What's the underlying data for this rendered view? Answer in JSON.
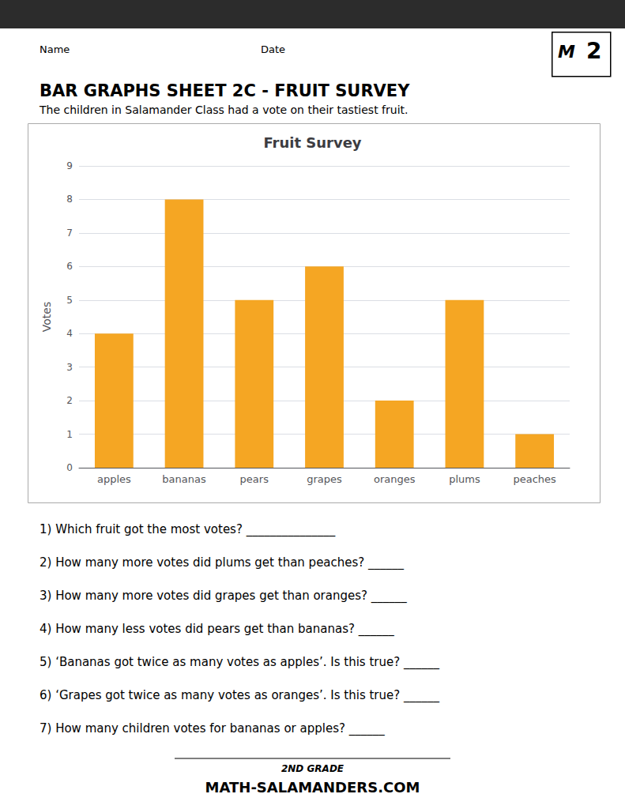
{
  "chart_data": {
    "type": "bar",
    "title": "Fruit Survey",
    "categories": [
      "apples",
      "bananas",
      "pears",
      "grapes",
      "oranges",
      "plums",
      "peaches"
    ],
    "values": [
      4,
      8,
      5,
      6,
      2,
      5,
      1
    ],
    "color": "#F5A623",
    "ylabel": "Votes",
    "ylim": [
      0,
      9
    ],
    "yticks": [
      0,
      1,
      2,
      3,
      4,
      5,
      6,
      7,
      8,
      9
    ],
    "grid": true,
    "annotations": [
      "Name",
      "Date",
      "2",
      "M",
      "BAR GRAPHS SHEET 2C - FRUIT SURVEY",
      "The children in Salamander Class had a vote on their tastiest fruit.",
      "1) Which fruit got the most votes? _______________",
      "2) How many more votes did plums get than peaches? ______",
      "3) How many more votes did grapes get than oranges? ______",
      "4) How many less votes did pears get than bananas? ______",
      "5) ‘Bananas got twice as many votes as apples’. Is this true? ______",
      "6) ‘Grapes got twice as many votes as oranges’. Is this true? ______",
      "7) How many children votes for bananas or apples? ______",
      "2ND GRADE",
      "MATH-SALAMANDERS.COM"
    ]
  }
}
